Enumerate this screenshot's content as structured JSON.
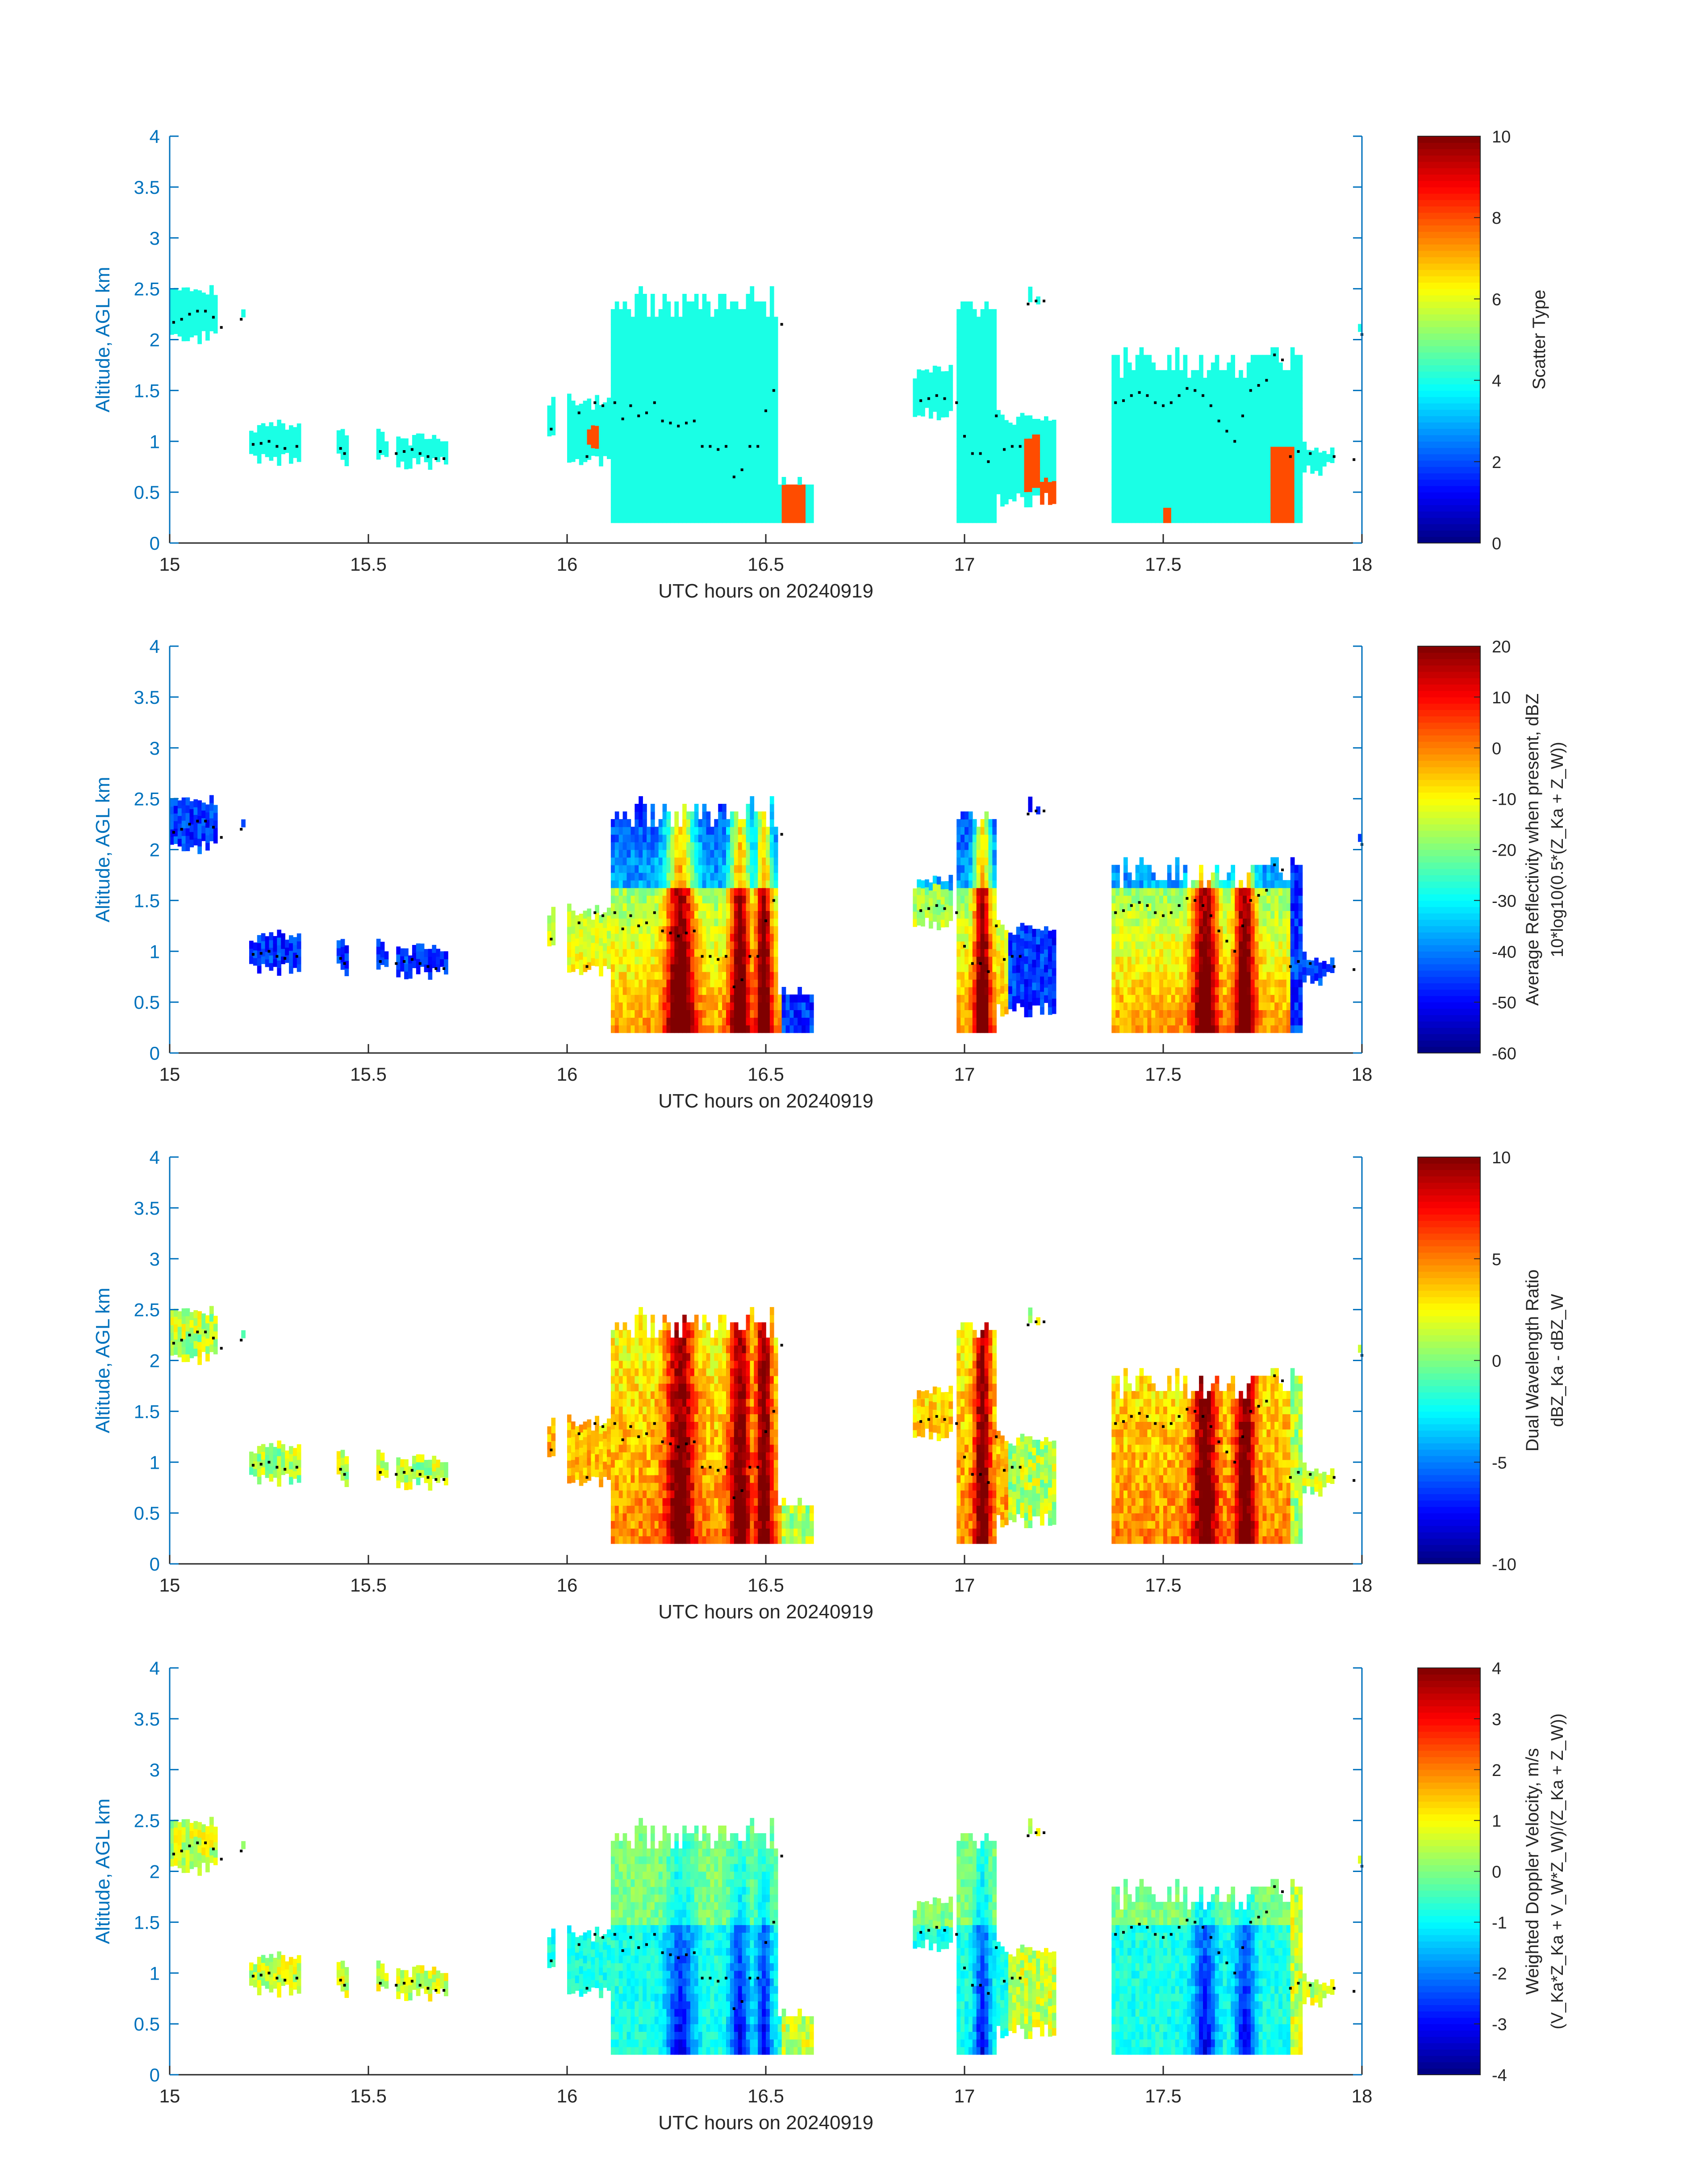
{
  "x_axis": {
    "label": "UTC hours on 20240919",
    "ticks": [
      "15",
      "15.5",
      "16",
      "16.5",
      "17",
      "17.5",
      "18"
    ],
    "range": [
      15,
      18
    ]
  },
  "y_axis": {
    "label": "Altitude, AGL km",
    "ticks": [
      "0",
      "0.5",
      "1",
      "1.5",
      "2",
      "2.5",
      "3",
      "3.5",
      "4"
    ],
    "range": [
      0,
      4
    ]
  },
  "colors": {
    "axis": "#0072bd",
    "text": "#262626",
    "marker": "#000000"
  },
  "colormap": "jet",
  "chart_data": [
    {
      "type": "heatmap",
      "colorbar_label": "Scatter Type",
      "colorbar_ticks": [
        "0",
        "2",
        "4",
        "6",
        "8",
        "10"
      ],
      "clim": [
        0,
        10
      ],
      "dominant_value": 4,
      "secondary_value": 8
    },
    {
      "type": "heatmap",
      "colorbar_label": "Average Reflectivity when present, dBZ",
      "colorbar_label2": "10*log10(0.5*(Z_Ka + Z_W))",
      "colorbar_ticks": [
        "-60",
        "-50",
        "-40",
        "-30",
        "-20",
        "-10",
        "0",
        "10",
        "20"
      ],
      "clim": [
        -60,
        20
      ]
    },
    {
      "type": "heatmap",
      "colorbar_label": "Dual Wavelength Ratio",
      "colorbar_label2": "dBZ_Ka - dBZ_W",
      "colorbar_ticks": [
        "-10",
        "-5",
        "0",
        "5",
        "10"
      ],
      "clim": [
        -10,
        10
      ]
    },
    {
      "type": "heatmap",
      "colorbar_label": "Weighted Doppler Velocity, m/s",
      "colorbar_label2": "(V_Ka*Z_Ka + V_W*Z_W)/(Z_Ka + Z_W))",
      "colorbar_ticks": [
        "-4",
        "-3",
        "-2",
        "-1",
        "0",
        "1",
        "2",
        "3",
        "4"
      ],
      "clim": [
        -4,
        4
      ]
    }
  ],
  "cloud_regions": [
    {
      "t0": 15.0,
      "t1": 15.12,
      "base": 1.95,
      "top": 2.5
    },
    {
      "t0": 15.18,
      "t1": 15.19,
      "base": 2.15,
      "top": 2.25
    },
    {
      "t0": 15.2,
      "t1": 15.33,
      "base": 0.75,
      "top": 1.18
    },
    {
      "t0": 15.42,
      "t1": 15.45,
      "base": 0.75,
      "top": 1.1
    },
    {
      "t0": 15.52,
      "t1": 15.55,
      "base": 0.75,
      "top": 1.08
    },
    {
      "t0": 15.57,
      "t1": 15.7,
      "base": 0.72,
      "top": 1.05
    },
    {
      "t0": 15.95,
      "t1": 15.97,
      "base": 1.05,
      "top": 1.45
    },
    {
      "t0": 16.0,
      "t1": 16.11,
      "base": 0.75,
      "top": 1.4
    },
    {
      "t0": 16.11,
      "t1": 16.53,
      "base": 0.2,
      "top": 2.5
    },
    {
      "t0": 16.53,
      "t1": 16.62,
      "base": 0.2,
      "top": 0.6
    },
    {
      "t0": 16.87,
      "t1": 16.97,
      "base": 1.2,
      "top": 1.7
    },
    {
      "t0": 16.98,
      "t1": 17.08,
      "base": 0.2,
      "top": 2.55
    },
    {
      "t0": 17.08,
      "t1": 17.23,
      "base": 0.35,
      "top": 1.25
    },
    {
      "t0": 17.16,
      "t1": 17.2,
      "base": 2.3,
      "top": 2.45
    },
    {
      "t0": 17.37,
      "t1": 17.85,
      "base": 0.2,
      "top": 1.9
    },
    {
      "t0": 17.85,
      "t1": 17.93,
      "base": 0.65,
      "top": 0.95
    },
    {
      "t0": 17.99,
      "t1": 18.0,
      "base": 2.0,
      "top": 2.2
    }
  ],
  "marker_points": [
    {
      "t": 15.01,
      "h": 2.17
    },
    {
      "t": 15.03,
      "h": 2.2
    },
    {
      "t": 15.05,
      "h": 2.25
    },
    {
      "t": 15.07,
      "h": 2.28
    },
    {
      "t": 15.09,
      "h": 2.28
    },
    {
      "t": 15.11,
      "h": 2.22
    },
    {
      "t": 15.13,
      "h": 2.12
    },
    {
      "t": 15.18,
      "h": 2.2
    },
    {
      "t": 15.21,
      "h": 0.97
    },
    {
      "t": 15.23,
      "h": 0.98
    },
    {
      "t": 15.25,
      "h": 1.0
    },
    {
      "t": 15.27,
      "h": 0.95
    },
    {
      "t": 15.29,
      "h": 0.93
    },
    {
      "t": 15.32,
      "h": 0.95
    },
    {
      "t": 15.43,
      "h": 0.93
    },
    {
      "t": 15.44,
      "h": 0.88
    },
    {
      "t": 15.53,
      "h": 0.9
    },
    {
      "t": 15.57,
      "h": 0.88
    },
    {
      "t": 15.59,
      "h": 0.9
    },
    {
      "t": 15.61,
      "h": 0.92
    },
    {
      "t": 15.63,
      "h": 0.88
    },
    {
      "t": 15.65,
      "h": 0.85
    },
    {
      "t": 15.67,
      "h": 0.83
    },
    {
      "t": 15.69,
      "h": 0.83
    },
    {
      "t": 15.96,
      "h": 1.12
    },
    {
      "t": 16.03,
      "h": 1.28
    },
    {
      "t": 16.05,
      "h": 0.85
    },
    {
      "t": 16.07,
      "h": 1.38
    },
    {
      "t": 16.09,
      "h": 1.35
    },
    {
      "t": 16.12,
      "h": 1.38
    },
    {
      "t": 16.14,
      "h": 1.22
    },
    {
      "t": 16.16,
      "h": 1.35
    },
    {
      "t": 16.18,
      "h": 1.25
    },
    {
      "t": 16.2,
      "h": 1.28
    },
    {
      "t": 16.22,
      "h": 1.38
    },
    {
      "t": 16.24,
      "h": 1.2
    },
    {
      "t": 16.26,
      "h": 1.18
    },
    {
      "t": 16.28,
      "h": 1.15
    },
    {
      "t": 16.3,
      "h": 1.18
    },
    {
      "t": 16.32,
      "h": 1.2
    },
    {
      "t": 16.34,
      "h": 0.95
    },
    {
      "t": 16.36,
      "h": 0.95
    },
    {
      "t": 16.38,
      "h": 0.92
    },
    {
      "t": 16.4,
      "h": 0.95
    },
    {
      "t": 16.42,
      "h": 0.65
    },
    {
      "t": 16.44,
      "h": 0.72
    },
    {
      "t": 16.46,
      "h": 0.95
    },
    {
      "t": 16.48,
      "h": 0.95
    },
    {
      "t": 16.5,
      "h": 1.3
    },
    {
      "t": 16.52,
      "h": 1.5
    },
    {
      "t": 16.54,
      "h": 2.15
    },
    {
      "t": 16.89,
      "h": 1.4
    },
    {
      "t": 16.91,
      "h": 1.42
    },
    {
      "t": 16.93,
      "h": 1.45
    },
    {
      "t": 16.95,
      "h": 1.42
    },
    {
      "t": 16.98,
      "h": 1.38
    },
    {
      "t": 17.0,
      "h": 1.05
    },
    {
      "t": 17.02,
      "h": 0.88
    },
    {
      "t": 17.04,
      "h": 0.88
    },
    {
      "t": 17.06,
      "h": 0.8
    },
    {
      "t": 17.08,
      "h": 1.25
    },
    {
      "t": 17.1,
      "h": 0.92
    },
    {
      "t": 17.12,
      "h": 0.95
    },
    {
      "t": 17.14,
      "h": 0.95
    },
    {
      "t": 17.16,
      "h": 2.35
    },
    {
      "t": 17.18,
      "h": 2.38
    },
    {
      "t": 17.2,
      "h": 2.38
    },
    {
      "t": 17.38,
      "h": 1.38
    },
    {
      "t": 17.4,
      "h": 1.4
    },
    {
      "t": 17.42,
      "h": 1.45
    },
    {
      "t": 17.44,
      "h": 1.48
    },
    {
      "t": 17.46,
      "h": 1.45
    },
    {
      "t": 17.48,
      "h": 1.38
    },
    {
      "t": 17.5,
      "h": 1.35
    },
    {
      "t": 17.52,
      "h": 1.38
    },
    {
      "t": 17.54,
      "h": 1.45
    },
    {
      "t": 17.56,
      "h": 1.52
    },
    {
      "t": 17.58,
      "h": 1.5
    },
    {
      "t": 17.6,
      "h": 1.45
    },
    {
      "t": 17.62,
      "h": 1.35
    },
    {
      "t": 17.64,
      "h": 1.2
    },
    {
      "t": 17.66,
      "h": 1.1
    },
    {
      "t": 17.68,
      "h": 1.0
    },
    {
      "t": 17.7,
      "h": 1.25
    },
    {
      "t": 17.72,
      "h": 1.5
    },
    {
      "t": 17.74,
      "h": 1.55
    },
    {
      "t": 17.76,
      "h": 1.6
    },
    {
      "t": 17.78,
      "h": 1.85
    },
    {
      "t": 17.8,
      "h": 1.8
    },
    {
      "t": 17.82,
      "h": 0.85
    },
    {
      "t": 17.84,
      "h": 0.9
    },
    {
      "t": 17.87,
      "h": 0.88
    },
    {
      "t": 17.93,
      "h": 0.85
    },
    {
      "t": 17.98,
      "h": 0.82
    },
    {
      "t": 18.0,
      "h": 2.05
    }
  ]
}
